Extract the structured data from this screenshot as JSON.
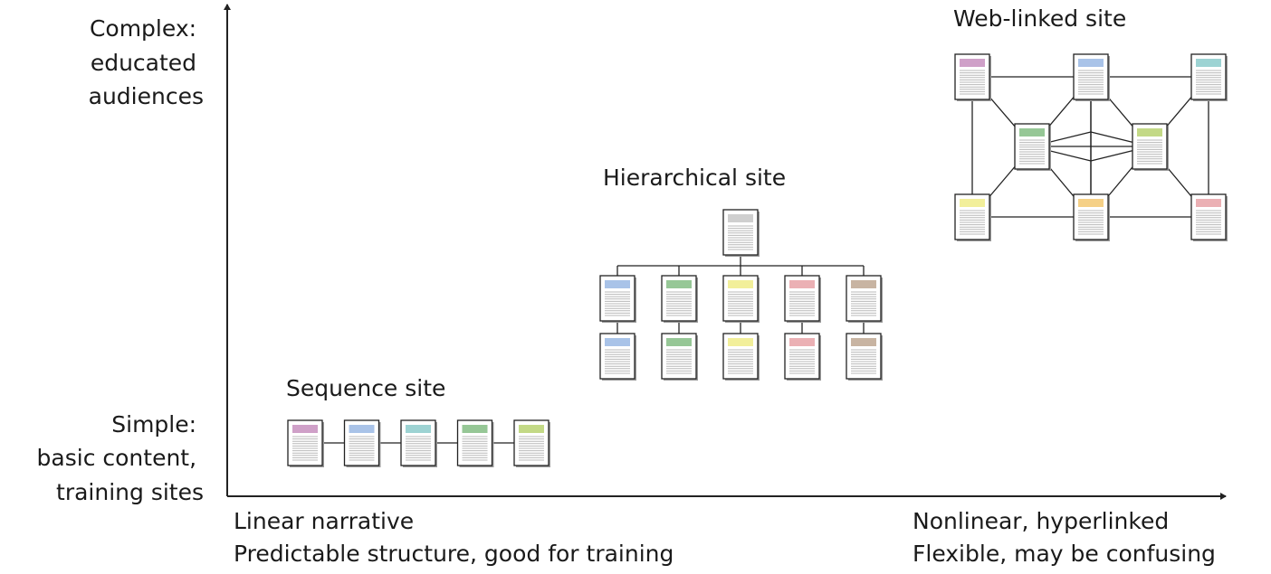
{
  "y_axis": {
    "top_label": [
      "Complex:",
      "educated",
      "audiences"
    ],
    "bottom_label": [
      "Simple:",
      "basic content,",
      "training sites"
    ]
  },
  "x_axis": {
    "left_label": [
      "Linear narrative",
      "Predictable structure, good for training"
    ],
    "right_label": [
      "Nonlinear, hyperlinked",
      "Flexible, may be confusing"
    ]
  },
  "structures": {
    "sequence": {
      "title": "Sequence site",
      "page_colors": [
        "#cfa0c8",
        "#a9c3e8",
        "#9dd3d3",
        "#96c796",
        "#c3d986"
      ]
    },
    "hierarchical": {
      "title": "Hierarchical site",
      "root_color": "#cfcfcf",
      "column_colors": [
        "#a9c3e8",
        "#96c796",
        "#f2ef9a",
        "#ebb0b4",
        "#c8b4a2"
      ],
      "levels_below_root": 2
    },
    "web": {
      "title": "Web-linked site",
      "top_row_colors": [
        "#cfa0c8",
        "#a9c3e8",
        "#9dd3d3"
      ],
      "middle_row_colors": [
        "#96c796",
        "#c3d986"
      ],
      "bottom_row_colors": [
        "#f2ef9a",
        "#f5d086",
        "#ebb0b4"
      ]
    }
  }
}
